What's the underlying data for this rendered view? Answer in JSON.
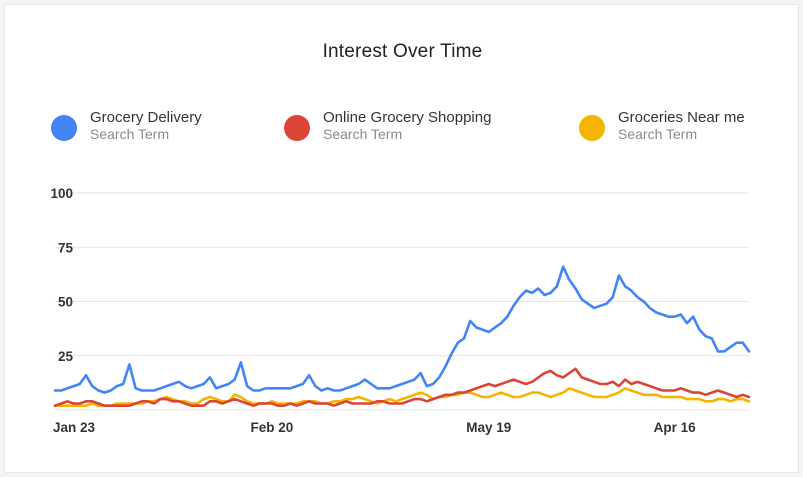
{
  "chart_data": {
    "type": "line",
    "title": "Interest Over Time",
    "xlabel": "",
    "ylabel": "",
    "ylim": [
      0,
      100
    ],
    "y_ticks": [
      "25",
      "50",
      "75",
      "100"
    ],
    "x_ticks": [
      "Jan 23",
      "Feb 20",
      "May 19",
      "Apr 16"
    ],
    "x_tick_index": [
      0,
      35,
      70,
      100
    ],
    "grid": true,
    "legend_position": "top",
    "series": [
      {
        "name": "Grocery Delivery",
        "subtitle": "Search Term",
        "color": "#4285f4",
        "values": [
          9,
          9,
          10,
          11,
          12,
          16,
          11,
          9,
          8,
          9,
          11,
          12,
          21,
          10,
          9,
          9,
          9,
          10,
          11,
          12,
          13,
          11,
          10,
          11,
          12,
          15,
          10,
          11,
          12,
          14,
          22,
          11,
          9,
          9,
          10,
          10,
          10,
          10,
          10,
          11,
          12,
          16,
          11,
          9,
          10,
          9,
          9,
          10,
          11,
          12,
          14,
          12,
          10,
          10,
          10,
          11,
          12,
          13,
          14,
          17,
          11,
          12,
          15,
          20,
          26,
          31,
          33,
          41,
          38,
          37,
          36,
          38,
          40,
          43,
          48,
          52,
          55,
          54,
          56,
          53,
          54,
          57,
          66,
          60,
          56,
          51,
          49,
          47,
          48,
          49,
          52,
          62,
          57,
          55,
          52,
          50,
          47,
          45,
          44,
          43,
          43,
          44,
          40,
          43,
          37,
          34,
          33,
          27,
          27,
          29,
          31,
          31,
          27
        ]
      },
      {
        "name": "Online Grocery Shopping",
        "subtitle": "Search Term",
        "color": "#db4437",
        "values": [
          2,
          3,
          4,
          3,
          3,
          4,
          4,
          3,
          2,
          2,
          2,
          2,
          2,
          3,
          4,
          4,
          3,
          5,
          5,
          4,
          4,
          3,
          2,
          2,
          2,
          4,
          4,
          3,
          4,
          5,
          4,
          3,
          2,
          3,
          3,
          3,
          2,
          2,
          3,
          2,
          3,
          4,
          3,
          3,
          3,
          2,
          3,
          4,
          3,
          3,
          3,
          3,
          4,
          4,
          3,
          3,
          3,
          4,
          5,
          5,
          4,
          5,
          6,
          7,
          7,
          8,
          8,
          9,
          10,
          11,
          12,
          11,
          12,
          13,
          14,
          13,
          12,
          13,
          15,
          17,
          18,
          16,
          15,
          17,
          19,
          15,
          14,
          13,
          12,
          12,
          13,
          11,
          14,
          12,
          13,
          12,
          11,
          10,
          9,
          9,
          9,
          10,
          9,
          8,
          8,
          7,
          8,
          9,
          8,
          7,
          6,
          7,
          6
        ]
      },
      {
        "name": "Groceries Near me",
        "subtitle": "Search Term",
        "color": "#f4b400",
        "values": [
          2,
          2,
          2,
          2,
          2,
          2,
          3,
          2,
          2,
          2,
          3,
          3,
          3,
          3,
          3,
          4,
          4,
          5,
          6,
          5,
          4,
          4,
          3,
          3,
          5,
          6,
          5,
          4,
          4,
          7,
          6,
          4,
          3,
          3,
          3,
          4,
          3,
          3,
          3,
          3,
          4,
          4,
          4,
          3,
          3,
          4,
          4,
          5,
          5,
          6,
          5,
          4,
          3,
          4,
          5,
          4,
          5,
          6,
          7,
          8,
          7,
          5,
          6,
          6,
          7,
          7,
          8,
          8,
          7,
          6,
          6,
          7,
          8,
          7,
          6,
          6,
          7,
          8,
          8,
          7,
          6,
          7,
          8,
          10,
          9,
          8,
          7,
          6,
          6,
          6,
          7,
          8,
          10,
          9,
          8,
          7,
          7,
          7,
          6,
          6,
          6,
          6,
          5,
          5,
          5,
          4,
          4,
          5,
          5,
          4,
          5,
          5,
          4
        ]
      }
    ]
  }
}
